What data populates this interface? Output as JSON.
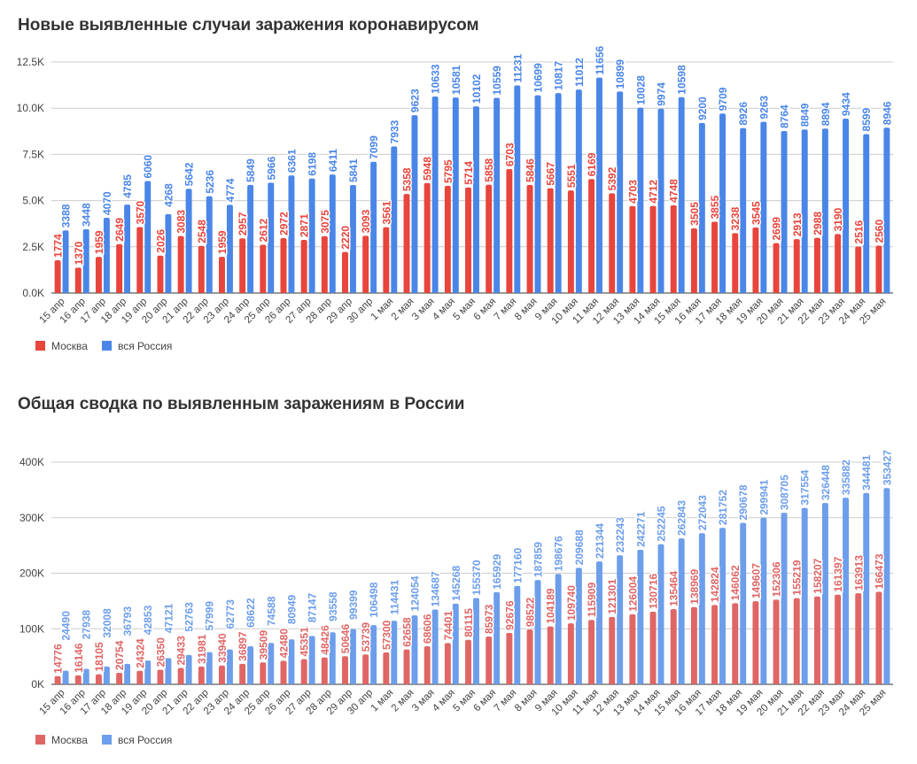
{
  "chart_data": [
    {
      "type": "bar",
      "title": "Новые выявленные случаи заражения коронавирусом",
      "categories": [
        "15 апр",
        "16 апр",
        "17 апр",
        "18 апр",
        "19 апр",
        "20 апр",
        "21 апр",
        "22 апр",
        "23 апр",
        "24 апр",
        "25 апр",
        "26 апр",
        "27 апр",
        "28 апр",
        "29 апр",
        "30 апр",
        "1 мая",
        "2 мая",
        "3 мая",
        "4 мая",
        "5 мая",
        "6 мая",
        "7 мая",
        "8 мая",
        "9 мая",
        "10 мая",
        "11 мая",
        "12 мая",
        "13 мая",
        "14 мая",
        "15 мая",
        "16 мая",
        "17 мая",
        "18 мая",
        "19 мая",
        "20 мая",
        "21 мая",
        "22 мая",
        "23 мая",
        "24 мая",
        "25 мая"
      ],
      "series": [
        {
          "name": "Москва",
          "color": "#e8453c",
          "values": [
            1774,
            1370,
            1959,
            2649,
            3570,
            2026,
            3083,
            2548,
            1959,
            2957,
            2612,
            2972,
            2871,
            3075,
            2220,
            3093,
            3561,
            5358,
            5948,
            5795,
            5714,
            5858,
            6703,
            5846,
            5667,
            5551,
            6169,
            5392,
            4703,
            4712,
            4748,
            3505,
            3855,
            3238,
            3545,
            2699,
            2913,
            2988,
            3190,
            2516,
            2560
          ]
        },
        {
          "name": "вся Россия",
          "color": "#4a86e8",
          "values": [
            3388,
            3448,
            4070,
            4785,
            6060,
            4268,
            5642,
            5236,
            4774,
            5849,
            5966,
            6361,
            6198,
            6411,
            5841,
            7099,
            7933,
            9623,
            10633,
            10581,
            10102,
            10559,
            11231,
            10699,
            10817,
            11012,
            11656,
            10899,
            10028,
            9974,
            10598,
            9200,
            9709,
            8926,
            9263,
            8764,
            8849,
            8894,
            9434,
            8599,
            8946
          ]
        }
      ],
      "yticks": [
        "0.0K",
        "2.5K",
        "5.0K",
        "7.5K",
        "10.0K",
        "12.5K"
      ],
      "ylim": [
        0,
        12500
      ],
      "grid": true,
      "legend": "bottom-left"
    },
    {
      "type": "bar",
      "title": "Общая сводка по выявленным заражениям в России",
      "categories": [
        "15 апр",
        "16 апр",
        "17 апр",
        "18 апр",
        "19 апр",
        "20 апр",
        "21 апр",
        "22 апр",
        "23 апр",
        "24 апр",
        "25 апр",
        "26 апр",
        "27 апр",
        "28 апр",
        "29 апр",
        "30 апр",
        "1 мая",
        "2 мая",
        "3 мая",
        "4 мая",
        "5 мая",
        "6 мая",
        "7 мая",
        "8 мая",
        "9 мая",
        "10 мая",
        "11 мая",
        "12 мая",
        "13 мая",
        "14 мая",
        "15 мая",
        "16 мая",
        "17 мая",
        "18 мая",
        "19 мая",
        "20 мая",
        "21 мая",
        "22 мая",
        "23 мая",
        "24 мая",
        "25 мая"
      ],
      "series": [
        {
          "name": "Москва",
          "color": "#e06666",
          "values": [
            14776,
            16146,
            18105,
            20754,
            24324,
            26350,
            29433,
            31981,
            33940,
            36897,
            39509,
            42480,
            45351,
            48426,
            50646,
            53739,
            57300,
            62658,
            68606,
            74401,
            80115,
            85973,
            92676,
            98522,
            104189,
            109740,
            115909,
            121301,
            126004,
            130716,
            135464,
            138969,
            142824,
            146062,
            149607,
            152306,
            155219,
            158207,
            161397,
            163913,
            166473
          ]
        },
        {
          "name": "вся Россия",
          "color": "#6d9eeb",
          "values": [
            24490,
            27938,
            32008,
            36793,
            42853,
            47121,
            52763,
            57999,
            62773,
            68622,
            74588,
            80949,
            87147,
            93558,
            99399,
            106498,
            114431,
            124054,
            134687,
            145268,
            155370,
            165929,
            177160,
            187859,
            198676,
            209688,
            221344,
            232243,
            242271,
            252245,
            262843,
            272043,
            281752,
            290678,
            299941,
            308705,
            317554,
            326448,
            335882,
            344481,
            353427
          ]
        }
      ],
      "yticks": [
        "0K",
        "100K",
        "200K",
        "300K",
        "400K"
      ],
      "ylim": [
        0,
        400000
      ],
      "grid": true,
      "legend": "bottom-left"
    }
  ]
}
